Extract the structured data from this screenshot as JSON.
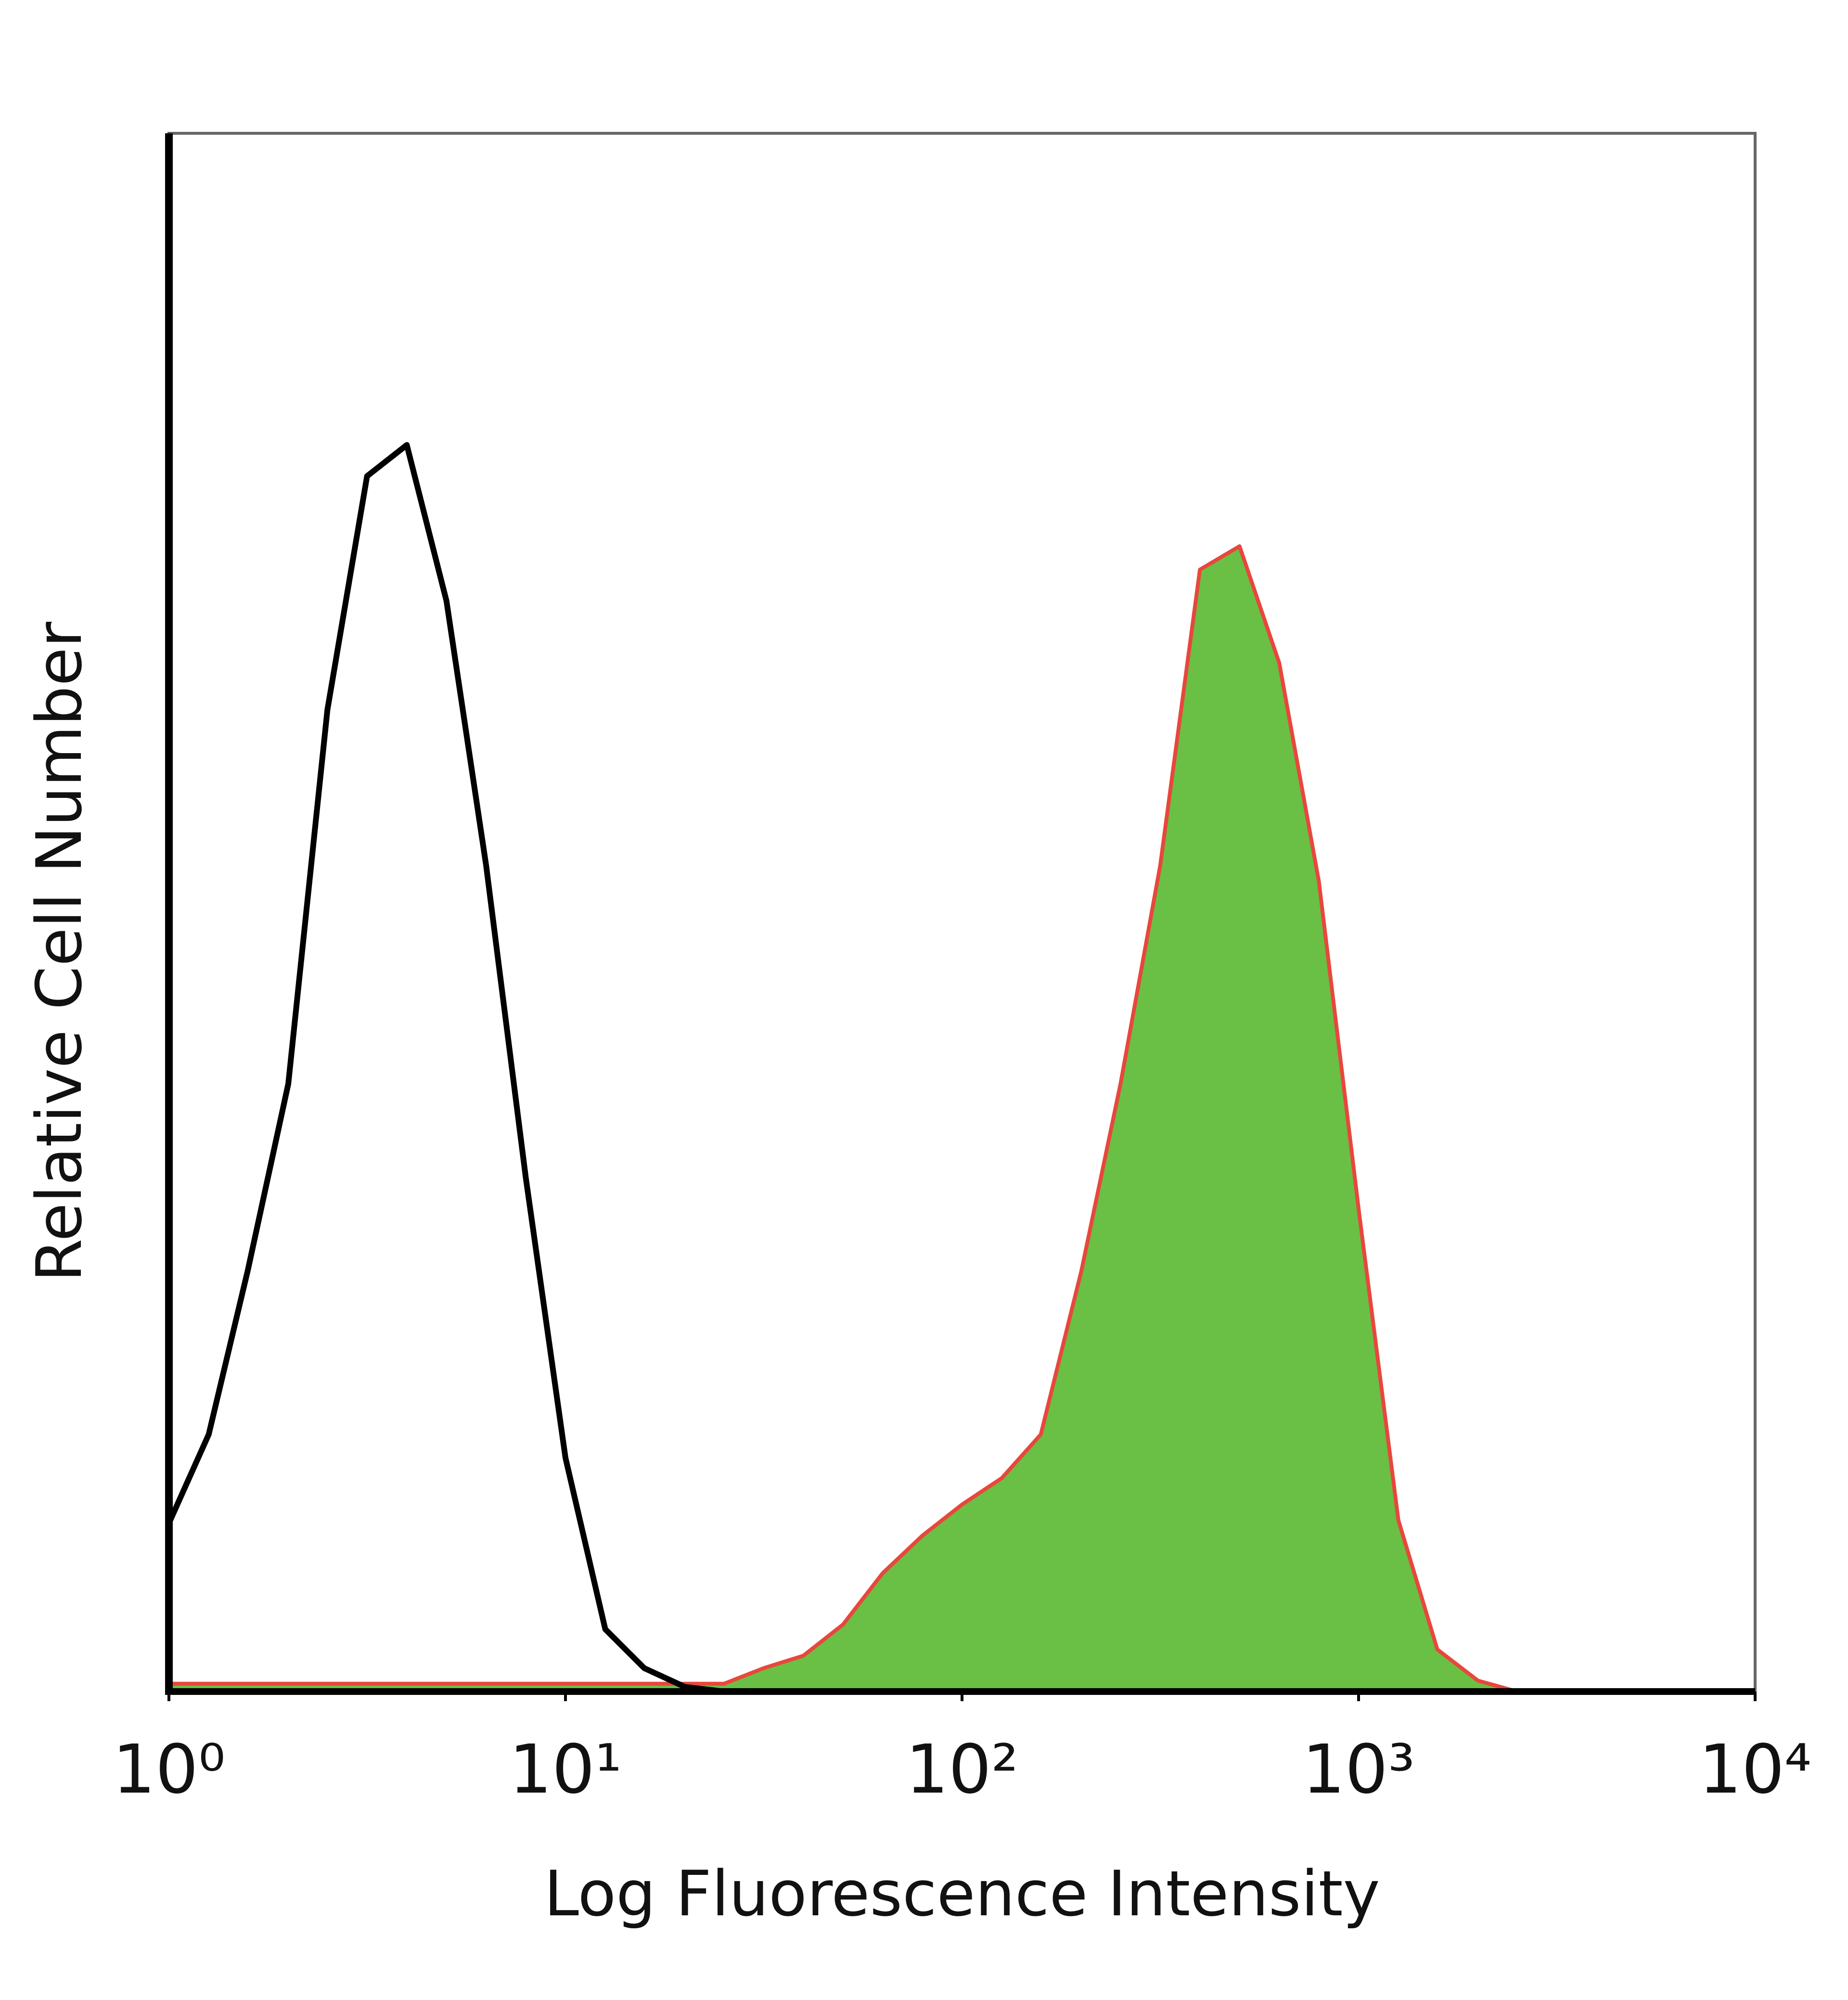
{
  "chart_data": {
    "type": "area",
    "xlabel": "Log Fluorescence Intensity",
    "ylabel": "Relative Cell Number",
    "xscale": "log",
    "xlim": [
      1,
      10000
    ],
    "xticks": [
      {
        "value": 1,
        "label": "10⁰"
      },
      {
        "value": 10,
        "label": "10¹"
      },
      {
        "value": 100,
        "label": "10²"
      },
      {
        "value": 1000,
        "label": "10³"
      },
      {
        "value": 10000,
        "label": "10⁴"
      }
    ],
    "ylim": [
      0,
      100
    ],
    "x": [
      1,
      1.26,
      1.58,
      2,
      2.51,
      3.16,
      3.98,
      5.01,
      6.31,
      7.94,
      10,
      12.6,
      15.8,
      20,
      25.1,
      31.6,
      39.8,
      50.1,
      63.1,
      79.4,
      100,
      126,
      158,
      200,
      251,
      316,
      398,
      501,
      631,
      794,
      1000,
      1260,
      1580,
      2000,
      2510,
      3160
    ],
    "series": [
      {
        "color": "#6abf45",
        "edgecolor": "#e8473c",
        "filled": true,
        "values": [
          0.5,
          0.5,
          0.5,
          0.5,
          0.5,
          0.5,
          0.5,
          0.5,
          0.5,
          0.5,
          0.5,
          0.5,
          0.5,
          0.5,
          0.5,
          1.5,
          2.3,
          4.3,
          7.6,
          10,
          12,
          13.7,
          16.5,
          27,
          39,
          53,
          72,
          73.5,
          66,
          52,
          31,
          11,
          2.7,
          0.7,
          0,
          0
        ]
      },
      {
        "color": "#000000",
        "filled": false,
        "values": [
          10.8,
          16.5,
          27,
          39,
          63,
          78,
          80,
          70,
          53,
          33,
          15,
          4,
          1.5,
          0.3,
          0,
          0,
          0,
          0,
          0,
          0,
          0,
          0,
          0,
          0,
          0,
          0,
          0,
          0,
          0,
          0,
          0,
          0,
          0,
          0,
          0,
          0
        ]
      }
    ]
  }
}
